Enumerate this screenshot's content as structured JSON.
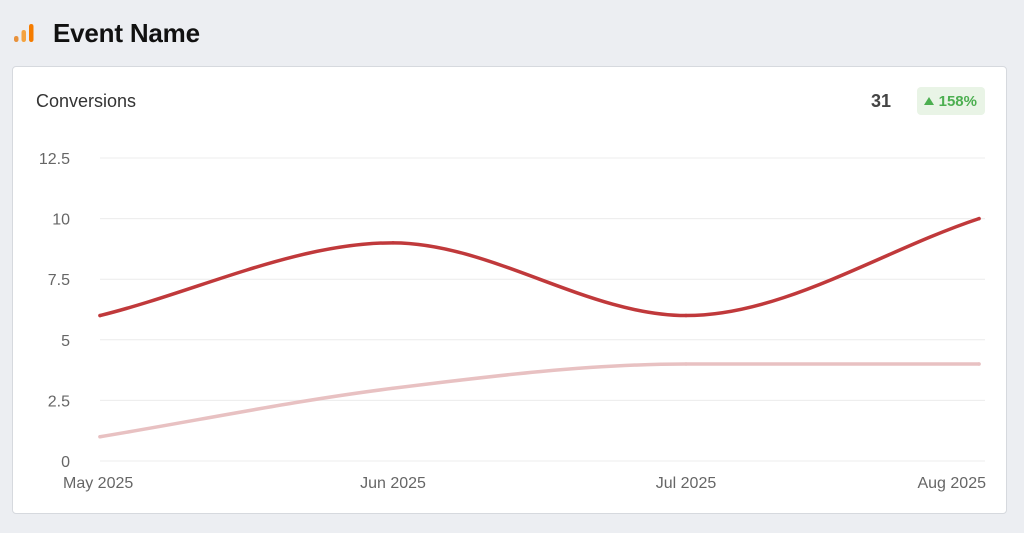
{
  "header": {
    "title": "Event Name",
    "icon": "analytics-bars-icon",
    "icon_color": "#f57c00"
  },
  "card": {
    "label": "Conversions",
    "total": "31",
    "change": "158%",
    "change_direction": "up",
    "change_color": "#4caf50",
    "change_bg": "#e9f4e6"
  },
  "chart_data": {
    "type": "line",
    "title": "",
    "xlabel": "",
    "ylabel": "",
    "categories": [
      "May 2025",
      "Jun 2025",
      "Jul 2025",
      "Aug 2025"
    ],
    "y_ticks": [
      "0",
      "2.5",
      "5",
      "7.5",
      "10",
      "12.5"
    ],
    "ylim": [
      0,
      12.5
    ],
    "grid": true,
    "legend": "none",
    "smooth": true,
    "series": [
      {
        "values": [
          6,
          9,
          6,
          10
        ],
        "color": "#c0393b"
      },
      {
        "values": [
          1,
          3,
          4,
          4
        ],
        "color": "#e8c1c2"
      }
    ]
  }
}
